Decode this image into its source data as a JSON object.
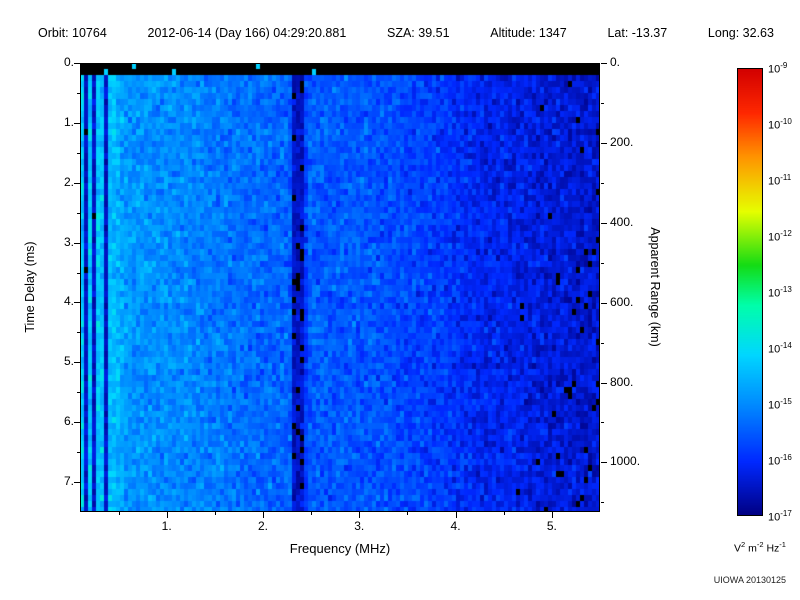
{
  "header": {
    "items": [
      "Orbit: 10764",
      "2012-06-14 (Day 166) 04:29:20.881",
      "SZA: 39.51",
      "Altitude: 1347",
      "Lat: -13.37",
      "Long: 32.63"
    ]
  },
  "footer": {
    "credit": "UIOWA 20130125"
  },
  "chart_data": {
    "type": "heatmap",
    "title": "",
    "xlabel": "Frequency (MHz)",
    "ylabel": "Time Delay (ms)",
    "y2label": "Apparent Range (km)",
    "x_range_mhz": [
      0.1,
      5.5
    ],
    "x_ticks": [
      1,
      2,
      3,
      4,
      5
    ],
    "x_tick_labels": [
      "1.",
      "2.",
      "3.",
      "4.",
      "5."
    ],
    "y_range_ms": [
      0,
      7.5
    ],
    "y_ticks": [
      0,
      1,
      2,
      3,
      4,
      5,
      6,
      7
    ],
    "y_tick_labels": [
      "0.",
      "1.",
      "2.",
      "3.",
      "4.",
      "5.",
      "6.",
      "7."
    ],
    "y2_ticks_km": [
      0,
      200,
      400,
      600,
      800,
      1000
    ],
    "y2_tick_labels": [
      "0.",
      "200.",
      "400.",
      "600.",
      "800.",
      "1000."
    ],
    "km_per_ms": 149.9,
    "grid": false,
    "legend": "colorbar-right",
    "colorbar": {
      "scale": "log",
      "min_exp": -17,
      "max_exp": -9,
      "tick_exponents": [
        -9,
        -10,
        -11,
        -12,
        -13,
        -14,
        -15,
        -16,
        -17
      ],
      "unit_parts": [
        {
          "text": "V"
        },
        {
          "text": "2",
          "sup": true
        },
        {
          "text": " m"
        },
        {
          "text": "-2",
          "sup": true
        },
        {
          "text": " Hz"
        },
        {
          "text": "-1",
          "sup": true
        }
      ],
      "top_color": "#d20000",
      "bottom_color": "#000082"
    },
    "spectrum": {
      "description": "Noisy radar-sounder ionogram; bright cyan at low frequencies fading to dark blue/black at high frequencies; black strip at zero delay; dark vertical band near 2.35 MHz; narrow dark lines near 0.17, 0.26, 0.36 MHz",
      "top_black_ms": 0.22,
      "noise_sigma_decades": 0.48,
      "profile_freq_mhz": [
        0.1,
        0.45,
        0.6,
        1.1,
        1.7,
        2.28,
        2.32,
        2.42,
        2.46,
        3.2,
        3.8,
        4.2,
        4.6,
        5.0,
        5.5
      ],
      "profile_log10_power": [
        -14.25,
        -14.45,
        -14.9,
        -15.0,
        -15.25,
        -15.45,
        -16.55,
        -16.55,
        -15.5,
        -15.6,
        -15.85,
        -16.1,
        -16.2,
        -16.35,
        -16.45
      ],
      "dark_lines_mhz": [
        0.17,
        0.26,
        0.36
      ],
      "black_threshold_log10": -16.85,
      "top_strip_speck_probability": 0.012
    }
  }
}
